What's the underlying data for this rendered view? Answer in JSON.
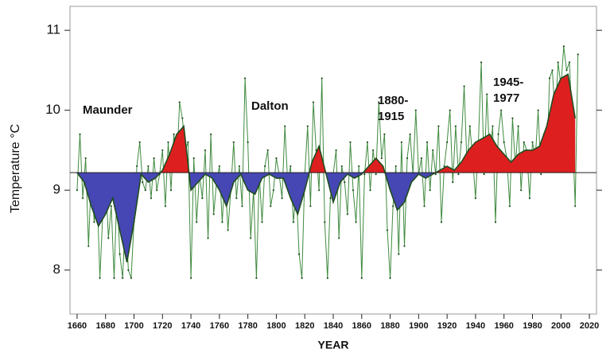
{
  "chart_data": {
    "type": "line",
    "x_label": "YEAR",
    "y_label": "Temperature °C",
    "annotations": [
      "Maunder",
      "Dalton",
      "1880-",
      "1915",
      "1945-",
      "1977"
    ],
    "baseline": 9.22,
    "baseline_color": "#222222",
    "above_color": "#dd1f1f",
    "below_color": "#4646b4",
    "xlim": [
      1655,
      2025
    ],
    "xticks": [
      1660,
      1680,
      1700,
      1720,
      1740,
      1760,
      1780,
      1800,
      1820,
      1840,
      1860,
      1880,
      1900,
      1920,
      1940,
      1960,
      1980,
      2000,
      2020
    ],
    "ylim": [
      7.45,
      11.3
    ],
    "yticks": [
      8,
      9,
      10,
      11
    ],
    "series": [
      {
        "color": "#3f8a3f",
        "x": [
          1660,
          1662,
          1664,
          1666,
          1668,
          1670,
          1672,
          1674,
          1676,
          1678,
          1680,
          1682,
          1684,
          1686,
          1688,
          1690,
          1692,
          1694,
          1696,
          1698,
          1700,
          1702,
          1704,
          1706,
          1708,
          1710,
          1712,
          1714,
          1716,
          1718,
          1720,
          1722,
          1724,
          1726,
          1728,
          1730,
          1732,
          1734,
          1736,
          1738,
          1740,
          1742,
          1744,
          1746,
          1748,
          1750,
          1752,
          1754,
          1756,
          1758,
          1760,
          1762,
          1764,
          1766,
          1768,
          1770,
          1772,
          1774,
          1776,
          1778,
          1780,
          1782,
          1784,
          1786,
          1788,
          1790,
          1792,
          1794,
          1796,
          1798,
          1800,
          1802,
          1804,
          1806,
          1808,
          1810,
          1812,
          1814,
          1816,
          1818,
          1820,
          1822,
          1824,
          1826,
          1828,
          1830,
          1832,
          1834,
          1836,
          1838,
          1840,
          1842,
          1844,
          1846,
          1848,
          1850,
          1852,
          1854,
          1856,
          1858,
          1860,
          1862,
          1864,
          1866,
          1868,
          1870,
          1872,
          1874,
          1876,
          1878,
          1880,
          1882,
          1884,
          1886,
          1888,
          1890,
          1892,
          1894,
          1896,
          1898,
          1900,
          1902,
          1904,
          1906,
          1908,
          1910,
          1912,
          1914,
          1916,
          1918,
          1920,
          1922,
          1924,
          1926,
          1928,
          1930,
          1932,
          1934,
          1936,
          1938,
          1940,
          1942,
          1944,
          1946,
          1948,
          1950,
          1952,
          1954,
          1956,
          1958,
          1960,
          1962,
          1964,
          1966,
          1968,
          1970,
          1972,
          1974,
          1976,
          1978,
          1980,
          1982,
          1984,
          1986,
          1988,
          1990,
          1992,
          1994,
          1996,
          1998,
          2000,
          2002,
          2004,
          2006,
          2008,
          2010,
          2012
        ],
        "values": [
          9.0,
          9.7,
          8.9,
          9.4,
          8.3,
          9.2,
          8.6,
          9.0,
          7.9,
          8.7,
          9.2,
          8.4,
          8.8,
          7.9,
          9.0,
          8.2,
          7.9,
          8.7,
          8.0,
          7.9,
          8.6,
          9.3,
          9.6,
          9.1,
          9.0,
          9.3,
          8.9,
          9.4,
          9.0,
          9.2,
          9.5,
          8.8,
          9.6,
          9.0,
          9.7,
          9.3,
          10.1,
          9.9,
          9.5,
          9.6,
          7.9,
          9.4,
          8.6,
          9.2,
          8.9,
          9.5,
          8.4,
          9.7,
          8.7,
          9.1,
          9.3,
          8.6,
          9.2,
          8.5,
          9.0,
          9.6,
          8.9,
          9.3,
          8.8,
          10.4,
          9.6,
          8.4,
          9.0,
          7.9,
          9.2,
          8.6,
          9.3,
          9.5,
          8.8,
          9.0,
          9.4,
          9.2,
          8.9,
          9.8,
          9.1,
          9.3,
          8.6,
          9.0,
          8.2,
          7.9,
          9.2,
          9.8,
          8.8,
          10.1,
          9.5,
          9.0,
          10.4,
          8.6,
          7.9,
          8.9,
          9.2,
          9.5,
          8.4,
          9.3,
          9.1,
          8.7,
          9.6,
          9.0,
          8.6,
          9.3,
          7.9,
          9.2,
          9.6,
          9.0,
          9.5,
          9.2,
          10.1,
          9.4,
          9.7,
          8.5,
          7.9,
          8.8,
          9.3,
          8.2,
          9.6,
          8.3,
          9.4,
          9.7,
          9.2,
          10.0,
          9.2,
          9.4,
          8.8,
          9.6,
          9.0,
          9.5,
          9.2,
          9.8,
          8.6,
          9.3,
          9.6,
          10.0,
          9.1,
          9.8,
          9.2,
          9.6,
          10.3,
          9.3,
          9.8,
          9.4,
          8.9,
          9.6,
          10.6,
          9.2,
          10.2,
          9.4,
          9.8,
          8.6,
          9.7,
          10.0,
          9.6,
          9.4,
          8.8,
          9.9,
          9.3,
          9.8,
          9.0,
          9.6,
          9.5,
          8.9,
          9.6,
          9.4,
          10.0,
          9.2,
          9.7,
          9.3,
          10.4,
          10.5,
          9.9,
          10.6,
          10.3,
          10.8,
          10.5,
          10.6,
          9.8,
          8.8,
          10.7
        ]
      },
      {
        "color": "#1e4d1e",
        "x": [
          1660,
          1665,
          1670,
          1675,
          1680,
          1685,
          1690,
          1695,
          1700,
          1705,
          1710,
          1715,
          1720,
          1725,
          1730,
          1735,
          1740,
          1745,
          1750,
          1755,
          1760,
          1765,
          1770,
          1775,
          1780,
          1785,
          1790,
          1795,
          1800,
          1805,
          1810,
          1815,
          1820,
          1825,
          1830,
          1835,
          1840,
          1845,
          1850,
          1855,
          1860,
          1865,
          1870,
          1875,
          1880,
          1885,
          1890,
          1895,
          1900,
          1905,
          1910,
          1915,
          1920,
          1925,
          1930,
          1935,
          1940,
          1945,
          1950,
          1955,
          1960,
          1965,
          1970,
          1975,
          1980,
          1985,
          1990,
          1995,
          2000,
          2005,
          2010
        ],
        "values": [
          9.22,
          9.1,
          8.8,
          8.55,
          8.7,
          8.9,
          8.5,
          8.1,
          8.6,
          9.2,
          9.1,
          9.15,
          9.25,
          9.45,
          9.7,
          9.8,
          9.0,
          9.1,
          9.2,
          9.15,
          9.0,
          8.8,
          9.1,
          9.2,
          9.0,
          8.95,
          9.15,
          9.2,
          9.15,
          9.15,
          8.9,
          8.7,
          9.0,
          9.35,
          9.55,
          9.2,
          8.85,
          9.1,
          9.2,
          9.15,
          9.2,
          9.3,
          9.4,
          9.3,
          9.0,
          8.75,
          8.85,
          9.1,
          9.2,
          9.15,
          9.2,
          9.25,
          9.3,
          9.25,
          9.35,
          9.5,
          9.6,
          9.65,
          9.7,
          9.55,
          9.45,
          9.35,
          9.45,
          9.5,
          9.5,
          9.55,
          9.8,
          10.2,
          10.4,
          10.45,
          9.9
        ]
      }
    ]
  }
}
